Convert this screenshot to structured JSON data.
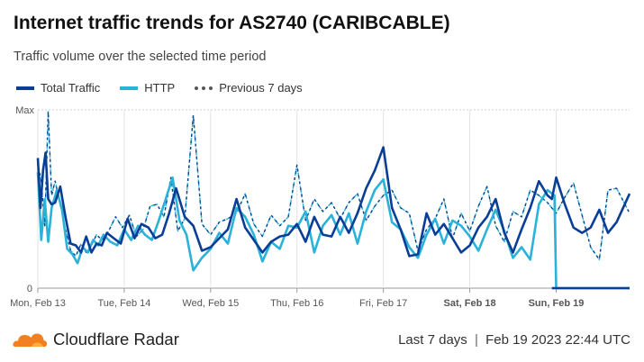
{
  "header": {
    "title": "Internet traffic trends for AS2740 (CARIBCABLE)",
    "subtitle": "Traffic volume over the selected time period"
  },
  "legend": [
    {
      "label": "Total Traffic",
      "color": "#0a3e96",
      "style": "solid"
    },
    {
      "label": "HTTP",
      "color": "#2ab2d8",
      "style": "solid"
    },
    {
      "label": "Previous 7 days",
      "color": "#555555",
      "style": "dashed"
    }
  ],
  "footer": {
    "brand": "Cloudflare Radar",
    "range": "Last 7 days",
    "separator": "|",
    "timestamp": "Feb 19 2023 22:44 UTC"
  },
  "chart_data": {
    "type": "line",
    "title": "Internet traffic trends for AS2740 (CARIBCABLE)",
    "subtitle": "Traffic volume over the selected time period",
    "xlabel": "",
    "ylabel": "",
    "x_ticks": [
      "Mon, Feb 13",
      "Tue, Feb 14",
      "Wed, Feb 15",
      "Thu, Feb 16",
      "Fri, Feb 17",
      "Sat, Feb 18",
      "Sun, Feb 19"
    ],
    "x_ticks_bold": [
      false,
      false,
      false,
      false,
      false,
      true,
      true
    ],
    "y_ticks": [
      "0",
      "Max"
    ],
    "ylim": [
      0,
      1
    ],
    "x_range_days": [
      0,
      6.85
    ],
    "grid": true,
    "legend_position": "top-left",
    "series": [
      {
        "name": "Total Traffic",
        "color": "#0a3e96",
        "style": "solid",
        "x": [
          0.0,
          0.03,
          0.06,
          0.09,
          0.12,
          0.16,
          0.2,
          0.26,
          0.32,
          0.38,
          0.44,
          0.5,
          0.56,
          0.62,
          0.68,
          0.74,
          0.8,
          0.88,
          0.96,
          1.04,
          1.12,
          1.2,
          1.28,
          1.36,
          1.44,
          1.52,
          1.6,
          1.7,
          1.8,
          1.9,
          2.0,
          2.1,
          2.2,
          2.3,
          2.4,
          2.5,
          2.6,
          2.7,
          2.8,
          2.9,
          3.0,
          3.1,
          3.2,
          3.3,
          3.4,
          3.5,
          3.6,
          3.7,
          3.8,
          3.9,
          4.0,
          4.1,
          4.2,
          4.3,
          4.4,
          4.5,
          4.6,
          4.7,
          4.8,
          4.9,
          5.0,
          5.1,
          5.2,
          5.3,
          5.4,
          5.5,
          5.6,
          5.7,
          5.8,
          5.9,
          5.95,
          6.0,
          6.1,
          6.2,
          6.3,
          6.4,
          6.5,
          6.6,
          6.7,
          6.85
        ],
        "y": [
          0.73,
          0.45,
          0.66,
          0.76,
          0.5,
          0.47,
          0.48,
          0.57,
          0.4,
          0.25,
          0.24,
          0.2,
          0.29,
          0.2,
          0.25,
          0.24,
          0.31,
          0.28,
          0.25,
          0.39,
          0.28,
          0.36,
          0.34,
          0.28,
          0.3,
          0.42,
          0.56,
          0.4,
          0.35,
          0.21,
          0.23,
          0.28,
          0.33,
          0.5,
          0.34,
          0.27,
          0.2,
          0.26,
          0.29,
          0.3,
          0.36,
          0.26,
          0.4,
          0.3,
          0.29,
          0.4,
          0.31,
          0.42,
          0.56,
          0.66,
          0.79,
          0.45,
          0.33,
          0.18,
          0.19,
          0.42,
          0.3,
          0.36,
          0.28,
          0.2,
          0.24,
          0.34,
          0.4,
          0.5,
          0.31,
          0.2,
          0.33,
          0.45,
          0.6,
          0.52,
          0.5,
          0.62,
          0.47,
          0.34,
          0.31,
          0.34,
          0.44,
          0.31,
          0.37,
          0.53
        ],
        "x_end": 5.95,
        "flat_after": 0.0
      },
      {
        "name": "HTTP",
        "color": "#2ab2d8",
        "style": "solid",
        "x": [
          0.0,
          0.04,
          0.08,
          0.12,
          0.16,
          0.22,
          0.28,
          0.34,
          0.4,
          0.46,
          0.52,
          0.58,
          0.64,
          0.7,
          0.76,
          0.84,
          0.92,
          1.0,
          1.08,
          1.16,
          1.24,
          1.32,
          1.4,
          1.48,
          1.56,
          1.64,
          1.72,
          1.8,
          1.9,
          2.0,
          2.1,
          2.2,
          2.3,
          2.4,
          2.5,
          2.6,
          2.7,
          2.8,
          2.9,
          3.0,
          3.1,
          3.2,
          3.3,
          3.4,
          3.5,
          3.6,
          3.7,
          3.8,
          3.9,
          4.0,
          4.1,
          4.2,
          4.3,
          4.4,
          4.5,
          4.6,
          4.7,
          4.8,
          4.9,
          5.0,
          5.1,
          5.2,
          5.3,
          5.4,
          5.5,
          5.6,
          5.7,
          5.8,
          5.9,
          5.98,
          6.0,
          6.85
        ],
        "y": [
          0.65,
          0.27,
          0.5,
          0.26,
          0.45,
          0.55,
          0.44,
          0.22,
          0.19,
          0.14,
          0.23,
          0.2,
          0.27,
          0.24,
          0.3,
          0.26,
          0.24,
          0.33,
          0.27,
          0.35,
          0.3,
          0.27,
          0.38,
          0.5,
          0.62,
          0.38,
          0.3,
          0.1,
          0.17,
          0.22,
          0.31,
          0.25,
          0.45,
          0.4,
          0.3,
          0.15,
          0.26,
          0.22,
          0.35,
          0.34,
          0.43,
          0.2,
          0.35,
          0.41,
          0.3,
          0.42,
          0.25,
          0.43,
          0.55,
          0.61,
          0.37,
          0.33,
          0.23,
          0.17,
          0.3,
          0.39,
          0.25,
          0.38,
          0.35,
          0.29,
          0.21,
          0.33,
          0.44,
          0.32,
          0.17,
          0.23,
          0.16,
          0.47,
          0.55,
          0.52,
          0.0,
          0.0
        ]
      },
      {
        "name": "Previous 7 days",
        "color": "#4a6b92",
        "style": "dashed",
        "x": [
          0.0,
          0.04,
          0.08,
          0.12,
          0.16,
          0.2,
          0.26,
          0.32,
          0.38,
          0.44,
          0.5,
          0.56,
          0.62,
          0.68,
          0.74,
          0.82,
          0.9,
          0.98,
          1.06,
          1.14,
          1.22,
          1.3,
          1.38,
          1.46,
          1.54,
          1.62,
          1.7,
          1.8,
          1.9,
          2.0,
          2.1,
          2.2,
          2.3,
          2.4,
          2.5,
          2.6,
          2.7,
          2.8,
          2.9,
          3.0,
          3.1,
          3.2,
          3.3,
          3.4,
          3.5,
          3.6,
          3.7,
          3.8,
          3.9,
          4.0,
          4.1,
          4.2,
          4.3,
          4.4,
          4.5,
          4.6,
          4.7,
          4.8,
          4.9,
          5.0,
          5.1,
          5.2,
          5.3,
          5.4,
          5.5,
          5.6,
          5.7,
          5.8,
          5.9,
          6.0,
          6.1,
          6.2,
          6.3,
          6.4,
          6.5,
          6.6,
          6.7,
          6.85
        ],
        "y": [
          0.7,
          0.6,
          0.35,
          0.99,
          0.52,
          0.6,
          0.47,
          0.33,
          0.21,
          0.18,
          0.25,
          0.2,
          0.24,
          0.3,
          0.27,
          0.32,
          0.4,
          0.34,
          0.41,
          0.29,
          0.33,
          0.46,
          0.47,
          0.4,
          0.62,
          0.32,
          0.39,
          0.97,
          0.36,
          0.3,
          0.37,
          0.39,
          0.42,
          0.53,
          0.36,
          0.29,
          0.41,
          0.35,
          0.4,
          0.69,
          0.38,
          0.5,
          0.43,
          0.48,
          0.39,
          0.48,
          0.53,
          0.38,
          0.46,
          0.52,
          0.55,
          0.45,
          0.42,
          0.21,
          0.33,
          0.39,
          0.5,
          0.28,
          0.42,
          0.32,
          0.46,
          0.57,
          0.35,
          0.26,
          0.43,
          0.4,
          0.55,
          0.52,
          0.48,
          0.42,
          0.51,
          0.59,
          0.41,
          0.23,
          0.16,
          0.55,
          0.56,
          0.42
        ],
        "palette": [
          "#0d3f8f",
          "#2ab2d8"
        ]
      }
    ]
  }
}
